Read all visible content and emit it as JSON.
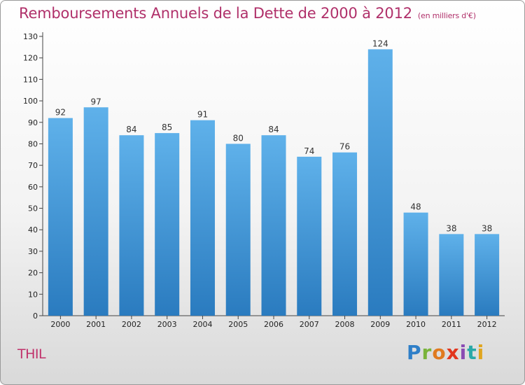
{
  "header": {
    "title": "Remboursements Annuels de la Dette de 2000 à 2012",
    "unit": "(en milliers d'€)"
  },
  "footer": {
    "place": "THIL",
    "logo": "Proxiti"
  },
  "colors": {
    "title": "#b0306a",
    "bar_top": "#5fb1ea",
    "bar_bottom": "#2a7bbf"
  },
  "chart_data": {
    "type": "bar",
    "title": "Remboursements Annuels de la Dette de 2000 à 2012",
    "subtitle": "(en milliers d'€)",
    "categories": [
      "2000",
      "2001",
      "2002",
      "2003",
      "2004",
      "2005",
      "2006",
      "2007",
      "2008",
      "2009",
      "2010",
      "2011",
      "2012"
    ],
    "values": [
      92,
      97,
      84,
      85,
      91,
      80,
      84,
      74,
      76,
      124,
      48,
      38,
      38
    ],
    "ylim": [
      0,
      130
    ],
    "yticks": [
      0,
      10,
      20,
      30,
      40,
      50,
      60,
      70,
      80,
      90,
      100,
      110,
      120,
      130
    ],
    "grid": false,
    "legend": "none"
  }
}
